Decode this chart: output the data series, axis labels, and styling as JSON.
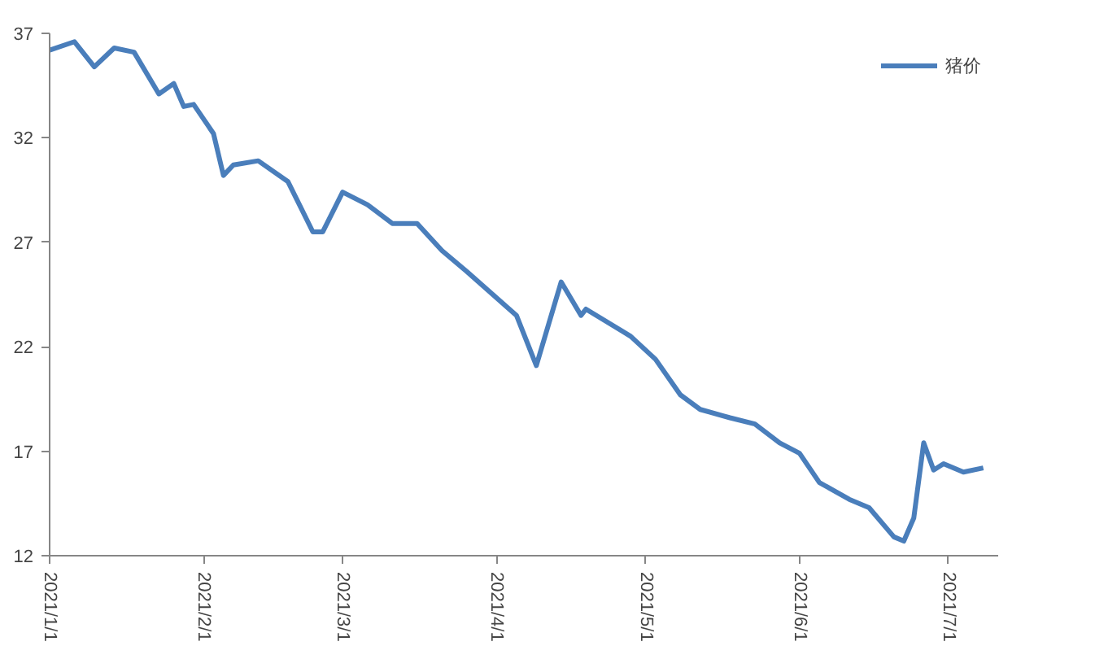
{
  "chart_data": {
    "type": "line",
    "x": [
      "2021-01-01",
      "2021-01-06",
      "2021-01-10",
      "2021-01-14",
      "2021-01-18",
      "2021-01-23",
      "2021-01-26",
      "2021-01-28",
      "2021-01-30",
      "2021-02-03",
      "2021-02-05",
      "2021-02-07",
      "2021-02-12",
      "2021-02-18",
      "2021-02-23",
      "2021-02-25",
      "2021-03-01",
      "2021-03-06",
      "2021-03-11",
      "2021-03-16",
      "2021-03-21",
      "2021-03-26",
      "2021-04-05",
      "2021-04-09",
      "2021-04-14",
      "2021-04-18",
      "2021-04-19",
      "2021-04-28",
      "2021-05-03",
      "2021-05-08",
      "2021-05-12",
      "2021-05-18",
      "2021-05-23",
      "2021-05-28",
      "2021-06-01",
      "2021-06-05",
      "2021-06-11",
      "2021-06-15",
      "2021-06-20",
      "2021-06-22",
      "2021-06-24",
      "2021-06-26",
      "2021-06-28",
      "2021-06-30",
      "2021-07-04",
      "2021-07-08"
    ],
    "series": [
      {
        "name": "猪价",
        "color": "#4a7ebb",
        "values": [
          36.2,
          36.6,
          35.4,
          36.3,
          36.1,
          34.1,
          34.6,
          33.5,
          33.6,
          32.2,
          30.2,
          30.7,
          30.9,
          29.9,
          27.5,
          27.5,
          29.4,
          28.8,
          27.9,
          27.9,
          26.6,
          25.6,
          23.5,
          21.1,
          25.1,
          23.5,
          23.8,
          22.5,
          21.4,
          19.7,
          19.0,
          18.6,
          18.3,
          17.4,
          16.9,
          15.5,
          14.7,
          14.3,
          12.9,
          12.7,
          13.8,
          17.4,
          16.1,
          16.4,
          16.0,
          16.2
        ]
      }
    ],
    "xlim": [
      "2021-01-01",
      "2021-07-11"
    ],
    "xticks": [
      {
        "value": "2021-01-01",
        "label": "2021/1/1"
      },
      {
        "value": "2021-02-01",
        "label": "2021/2/1"
      },
      {
        "value": "2021-03-01",
        "label": "2021/3/1"
      },
      {
        "value": "2021-04-01",
        "label": "2021/4/1"
      },
      {
        "value": "2021-05-01",
        "label": "2021/5/1"
      },
      {
        "value": "2021-06-01",
        "label": "2021/6/1"
      },
      {
        "value": "2021-07-01",
        "label": "2021/7/1"
      }
    ],
    "ylim": [
      12,
      37
    ],
    "yticks": [
      12,
      17,
      22,
      27,
      32,
      37
    ],
    "grid": false,
    "legend": "top right",
    "marker": "none",
    "line_style": "solid"
  }
}
